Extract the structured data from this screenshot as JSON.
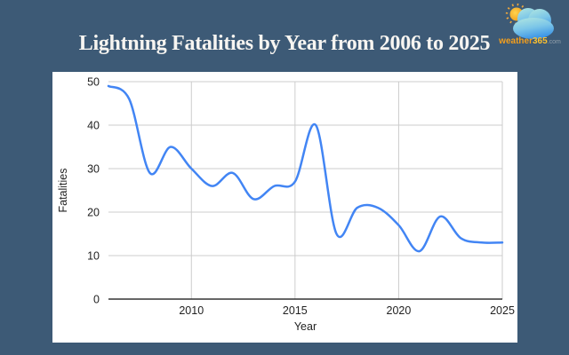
{
  "page": {
    "background": "#3d5a76",
    "card_background": "#ffffff"
  },
  "header": {
    "title": "Lightning Fatalities by Year from 2006 to 2025"
  },
  "logo": {
    "brand": "weather",
    "number": "365",
    "tld": ".com"
  },
  "chart_data": {
    "type": "line",
    "title": "Lightning Fatalities by Year from 2006 to 2025",
    "xlabel": "Year",
    "ylabel": "Fatalities",
    "x": [
      2006,
      2007,
      2008,
      2009,
      2010,
      2011,
      2012,
      2013,
      2014,
      2015,
      2016,
      2017,
      2018,
      2019,
      2020,
      2021,
      2022,
      2023,
      2024,
      2025
    ],
    "series": [
      {
        "name": "Fatalities",
        "values": [
          49,
          46,
          29,
          35,
          30,
          26,
          29,
          23,
          26,
          27,
          40,
          15,
          21,
          21,
          17,
          11,
          19,
          14,
          13,
          13
        ]
      }
    ],
    "xlim": [
      2006,
      2025
    ],
    "ylim": [
      0,
      50
    ],
    "x_ticks": [
      2010,
      2015,
      2020,
      2025
    ],
    "y_ticks": [
      0,
      10,
      20,
      30,
      40,
      50
    ],
    "grid": true,
    "smooth": true,
    "legend": "none",
    "line_color": "#4285f4",
    "grid_color": "#cccccc",
    "axis_color": "#333333",
    "label_color": "#222222"
  }
}
